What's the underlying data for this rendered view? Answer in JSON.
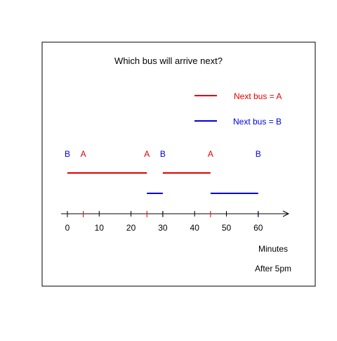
{
  "title": "Which bus will arrive next?",
  "legend": [
    {
      "label": "Next bus = A",
      "color": "#e00000"
    },
    {
      "label": "Next bus = B",
      "color": "#0000dd"
    }
  ],
  "arrivals": [
    {
      "bus": "B",
      "minute": 0
    },
    {
      "bus": "A",
      "minute": 5
    },
    {
      "bus": "A",
      "minute": 25
    },
    {
      "bus": "B",
      "minute": 30
    },
    {
      "bus": "A",
      "minute": 45
    },
    {
      "bus": "B",
      "minute": 60
    }
  ],
  "intervals_next_A": [
    [
      0,
      25
    ],
    [
      30,
      45
    ]
  ],
  "intervals_next_B": [
    [
      25,
      30
    ],
    [
      45,
      60
    ]
  ],
  "axis": {
    "min": 0,
    "max": 70,
    "ticks": [
      0,
      10,
      20,
      30,
      40,
      50,
      60
    ],
    "label": "Minutes",
    "note": "After 5pm"
  },
  "colors": {
    "A": "#e00000",
    "B": "#0000dd",
    "axis": "#000000"
  }
}
